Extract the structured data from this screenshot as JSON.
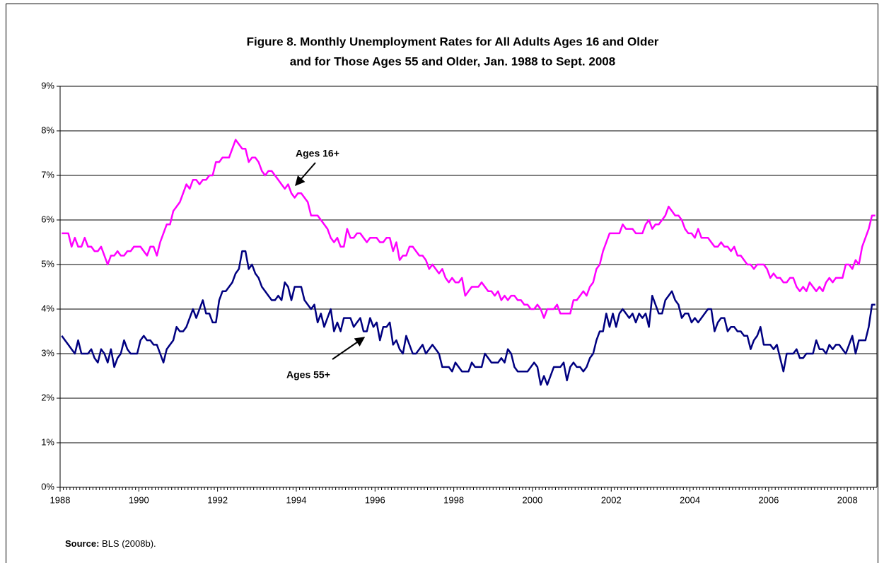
{
  "chart_data": {
    "type": "line",
    "title": [
      "Figure 8. Monthly Unemployment Rates for All Adults Ages 16 and Older",
      "and for Those Ages 55 and Older, Jan. 1988 to Sept. 2008"
    ],
    "categories": [
      "1988",
      null,
      null,
      null,
      null,
      null,
      null,
      null,
      null,
      null,
      null,
      null,
      null,
      null,
      null,
      null,
      null,
      null,
      null,
      null,
      null,
      null,
      null,
      null,
      "1990",
      null,
      null,
      null,
      null,
      null,
      null,
      null,
      null,
      null,
      null,
      null,
      null,
      null,
      null,
      null,
      null,
      null,
      null,
      null,
      null,
      null,
      null,
      null,
      "1992",
      null,
      null,
      null,
      null,
      null,
      null,
      null,
      null,
      null,
      null,
      null,
      null,
      null,
      null,
      null,
      null,
      null,
      null,
      null,
      null,
      null,
      null,
      null,
      "1994",
      null,
      null,
      null,
      null,
      null,
      null,
      null,
      null,
      null,
      null,
      null,
      null,
      null,
      null,
      null,
      null,
      null,
      null,
      null,
      null,
      null,
      null,
      null,
      "1996",
      null,
      null,
      null,
      null,
      null,
      null,
      null,
      null,
      null,
      null,
      null,
      null,
      null,
      null,
      null,
      null,
      null,
      null,
      null,
      null,
      null,
      null,
      null,
      "1998",
      null,
      null,
      null,
      null,
      null,
      null,
      null,
      null,
      null,
      null,
      null,
      null,
      null,
      null,
      null,
      null,
      null,
      null,
      null,
      null,
      null,
      null,
      null,
      "2000",
      null,
      null,
      null,
      null,
      null,
      null,
      null,
      null,
      null,
      null,
      null,
      null,
      null,
      null,
      null,
      null,
      null,
      null,
      null,
      null,
      null,
      null,
      null,
      "2002",
      null,
      null,
      null,
      null,
      null,
      null,
      null,
      null,
      null,
      null,
      null,
      null,
      null,
      null,
      null,
      null,
      null,
      null,
      null,
      null,
      null,
      null,
      null,
      "2004",
      null,
      null,
      null,
      null,
      null,
      null,
      null,
      null,
      null,
      null,
      null,
      null,
      null,
      null,
      null,
      null,
      null,
      null,
      null,
      null,
      null,
      null,
      null,
      "2006",
      null,
      null,
      null,
      null,
      null,
      null,
      null,
      null,
      null,
      null,
      null,
      null,
      null,
      null,
      null,
      null,
      null,
      null,
      null,
      null,
      null,
      null,
      null,
      "2008",
      null,
      null,
      null,
      null,
      null,
      null,
      null,
      null
    ],
    "series": [
      {
        "name": "Ages 16+",
        "color": "#ff00ff",
        "values": [
          5.7,
          5.7,
          5.7,
          5.4,
          5.6,
          5.4,
          5.4,
          5.6,
          5.4,
          5.4,
          5.3,
          5.3,
          5.4,
          5.2,
          5.0,
          5.2,
          5.2,
          5.3,
          5.2,
          5.2,
          5.3,
          5.3,
          5.4,
          5.4,
          5.4,
          5.3,
          5.2,
          5.4,
          5.4,
          5.2,
          5.5,
          5.7,
          5.9,
          5.9,
          6.2,
          6.3,
          6.4,
          6.6,
          6.8,
          6.7,
          6.9,
          6.9,
          6.8,
          6.9,
          6.9,
          7.0,
          7.0,
          7.3,
          7.3,
          7.4,
          7.4,
          7.4,
          7.6,
          7.8,
          7.7,
          7.6,
          7.6,
          7.3,
          7.4,
          7.4,
          7.3,
          7.1,
          7.0,
          7.1,
          7.1,
          7.0,
          6.9,
          6.8,
          6.7,
          6.8,
          6.6,
          6.5,
          6.6,
          6.6,
          6.5,
          6.4,
          6.1,
          6.1,
          6.1,
          6.0,
          5.9,
          5.8,
          5.6,
          5.5,
          5.6,
          5.4,
          5.4,
          5.8,
          5.6,
          5.6,
          5.7,
          5.7,
          5.6,
          5.5,
          5.6,
          5.6,
          5.6,
          5.5,
          5.5,
          5.6,
          5.6,
          5.3,
          5.5,
          5.1,
          5.2,
          5.2,
          5.4,
          5.4,
          5.3,
          5.2,
          5.2,
          5.1,
          4.9,
          5.0,
          4.9,
          4.8,
          4.9,
          4.7,
          4.6,
          4.7,
          4.6,
          4.6,
          4.7,
          4.3,
          4.4,
          4.5,
          4.5,
          4.5,
          4.6,
          4.5,
          4.4,
          4.4,
          4.3,
          4.4,
          4.2,
          4.3,
          4.2,
          4.3,
          4.3,
          4.2,
          4.2,
          4.1,
          4.1,
          4.0,
          4.0,
          4.1,
          4.0,
          3.8,
          4.0,
          4.0,
          4.0,
          4.1,
          3.9,
          3.9,
          3.9,
          3.9,
          4.2,
          4.2,
          4.3,
          4.4,
          4.3,
          4.5,
          4.6,
          4.9,
          5.0,
          5.3,
          5.5,
          5.7,
          5.7,
          5.7,
          5.7,
          5.9,
          5.8,
          5.8,
          5.8,
          5.7,
          5.7,
          5.7,
          5.9,
          6.0,
          5.8,
          5.9,
          5.9,
          6.0,
          6.1,
          6.3,
          6.2,
          6.1,
          6.1,
          6.0,
          5.8,
          5.7,
          5.7,
          5.6,
          5.8,
          5.6,
          5.6,
          5.6,
          5.5,
          5.4,
          5.4,
          5.5,
          5.4,
          5.4,
          5.3,
          5.4,
          5.2,
          5.2,
          5.1,
          5.0,
          5.0,
          4.9,
          5.0,
          5.0,
          5.0,
          4.9,
          4.7,
          4.8,
          4.7,
          4.7,
          4.6,
          4.6,
          4.7,
          4.7,
          4.5,
          4.4,
          4.5,
          4.4,
          4.6,
          4.5,
          4.4,
          4.5,
          4.4,
          4.6,
          4.7,
          4.6,
          4.7,
          4.7,
          4.7,
          5.0,
          5.0,
          4.9,
          5.1,
          5.0,
          5.4,
          5.6,
          5.8,
          6.1,
          6.1
        ]
      },
      {
        "name": "Ages 55+",
        "color": "#000080",
        "values": [
          3.4,
          3.3,
          3.2,
          3.1,
          3.0,
          3.3,
          3.0,
          3.0,
          3.0,
          3.1,
          2.9,
          2.8,
          3.1,
          3.0,
          2.8,
          3.1,
          2.7,
          2.9,
          3.0,
          3.3,
          3.1,
          3.0,
          3.0,
          3.0,
          3.3,
          3.4,
          3.3,
          3.3,
          3.2,
          3.2,
          3.0,
          2.8,
          3.1,
          3.2,
          3.3,
          3.6,
          3.5,
          3.5,
          3.6,
          3.8,
          4.0,
          3.8,
          4.0,
          4.2,
          3.9,
          3.9,
          3.7,
          3.7,
          4.2,
          4.4,
          4.4,
          4.5,
          4.6,
          4.8,
          4.9,
          5.3,
          5.3,
          4.9,
          5.0,
          4.8,
          4.7,
          4.5,
          4.4,
          4.3,
          4.2,
          4.2,
          4.3,
          4.2,
          4.6,
          4.5,
          4.2,
          4.5,
          4.5,
          4.5,
          4.2,
          4.1,
          4.0,
          4.1,
          3.7,
          3.9,
          3.6,
          3.8,
          4.0,
          3.5,
          3.7,
          3.5,
          3.8,
          3.8,
          3.8,
          3.6,
          3.7,
          3.8,
          3.5,
          3.5,
          3.8,
          3.6,
          3.7,
          3.3,
          3.6,
          3.6,
          3.7,
          3.2,
          3.3,
          3.1,
          3.0,
          3.4,
          3.2,
          3.0,
          3.0,
          3.1,
          3.2,
          3.0,
          3.1,
          3.2,
          3.1,
          3.0,
          2.7,
          2.7,
          2.7,
          2.6,
          2.8,
          2.7,
          2.6,
          2.6,
          2.6,
          2.8,
          2.7,
          2.7,
          2.7,
          3.0,
          2.9,
          2.8,
          2.8,
          2.8,
          2.9,
          2.8,
          3.1,
          3.0,
          2.7,
          2.6,
          2.6,
          2.6,
          2.6,
          2.7,
          2.8,
          2.7,
          2.3,
          2.5,
          2.3,
          2.5,
          2.7,
          2.7,
          2.7,
          2.8,
          2.4,
          2.7,
          2.8,
          2.7,
          2.7,
          2.6,
          2.7,
          2.9,
          3.0,
          3.3,
          3.5,
          3.5,
          3.9,
          3.6,
          3.9,
          3.6,
          3.9,
          4.0,
          3.9,
          3.8,
          3.9,
          3.7,
          3.9,
          3.8,
          3.9,
          3.6,
          4.3,
          4.1,
          3.9,
          3.9,
          4.2,
          4.3,
          4.4,
          4.2,
          4.1,
          3.8,
          3.9,
          3.9,
          3.7,
          3.8,
          3.7,
          3.8,
          3.9,
          4.0,
          4.0,
          3.5,
          3.7,
          3.8,
          3.8,
          3.5,
          3.6,
          3.6,
          3.5,
          3.5,
          3.4,
          3.4,
          3.1,
          3.3,
          3.4,
          3.6,
          3.2,
          3.2,
          3.2,
          3.1,
          3.2,
          2.9,
          2.6,
          3.0,
          3.0,
          3.0,
          3.1,
          2.9,
          2.9,
          3.0,
          3.0,
          3.0,
          3.3,
          3.1,
          3.1,
          3.0,
          3.2,
          3.1,
          3.2,
          3.2,
          3.1,
          3.0,
          3.2,
          3.4,
          3.0,
          3.3,
          3.3,
          3.3,
          3.6,
          4.1,
          4.1
        ]
      }
    ],
    "annotations": [
      "Ages 16+",
      "Ages 55+"
    ],
    "ylim": [
      0,
      9
    ],
    "yticks": [
      {
        "value": 0,
        "label": "0%"
      },
      {
        "value": 1,
        "label": "1%"
      },
      {
        "value": 2,
        "label": "2%"
      },
      {
        "value": 3,
        "label": "3%"
      },
      {
        "value": 4,
        "label": "4%"
      },
      {
        "value": 5,
        "label": "5%"
      },
      {
        "value": 6,
        "label": "6%"
      },
      {
        "value": 7,
        "label": "7%"
      },
      {
        "value": 8,
        "label": "8%"
      },
      {
        "value": 9,
        "label": "9%"
      }
    ],
    "grid": true,
    "source_label": "Source:",
    "source": "BLS (2008b)."
  }
}
